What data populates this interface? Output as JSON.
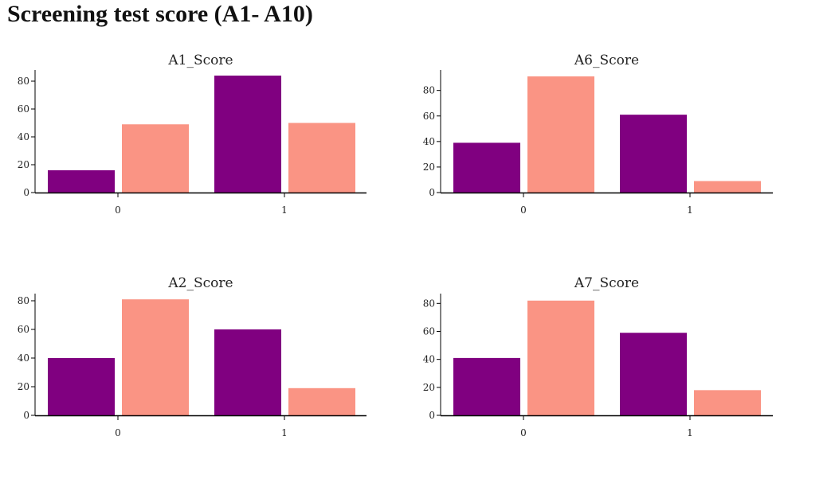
{
  "page": {
    "title": "Screening test score (A1- A10)"
  },
  "colors": {
    "series_a": "#800080",
    "series_b": "#fa9484",
    "axis": "#000000"
  },
  "chart_data": [
    {
      "type": "bar",
      "title": "A1_Score",
      "xlabel": "",
      "ylabel": "",
      "categories": [
        "0",
        "1"
      ],
      "series": [
        {
          "values": [
            16,
            84
          ]
        },
        {
          "values": [
            49,
            50
          ]
        }
      ],
      "ylim": [
        0,
        88
      ],
      "yticks": [
        0,
        20,
        40,
        60,
        80
      ]
    },
    {
      "type": "bar",
      "title": "A6_Score",
      "xlabel": "",
      "ylabel": "",
      "categories": [
        "0",
        "1"
      ],
      "series": [
        {
          "values": [
            39,
            61
          ]
        },
        {
          "values": [
            91,
            9
          ]
        }
      ],
      "ylim": [
        0,
        96
      ],
      "yticks": [
        0,
        20,
        40,
        60,
        80
      ]
    },
    {
      "type": "bar",
      "title": "A2_Score",
      "xlabel": "",
      "ylabel": "",
      "categories": [
        "0",
        "1"
      ],
      "series": [
        {
          "values": [
            40,
            60
          ]
        },
        {
          "values": [
            81,
            19
          ]
        }
      ],
      "ylim": [
        0,
        85
      ],
      "yticks": [
        0,
        20,
        40,
        60,
        80
      ]
    },
    {
      "type": "bar",
      "title": "A7_Score",
      "xlabel": "",
      "ylabel": "",
      "categories": [
        "0",
        "1"
      ],
      "series": [
        {
          "values": [
            41,
            59
          ]
        },
        {
          "values": [
            82,
            18
          ]
        }
      ],
      "ylim": [
        0,
        87
      ],
      "yticks": [
        0,
        20,
        40,
        60,
        80
      ]
    }
  ]
}
